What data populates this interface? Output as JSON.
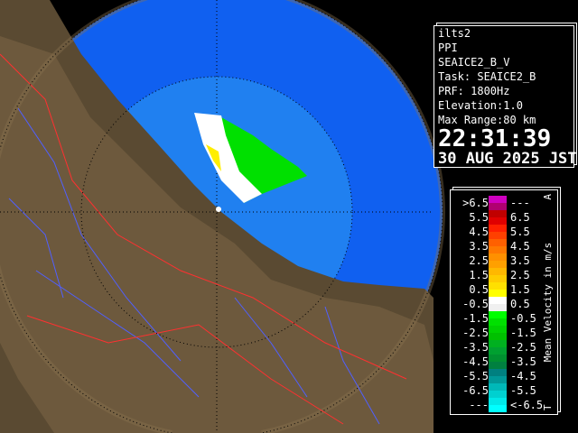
{
  "info": {
    "site": "ilts2",
    "mode": "PPI",
    "product": "SEAICE2_B_V",
    "task": "Task: SEAICE2_B",
    "prf": "PRF: 1800Hz",
    "elevation": "Elevation:1.0",
    "max_range": "Max Range:80 km",
    "time": "22:31:39",
    "date": "30 AUG 2025 JST"
  },
  "legend": {
    "title": "Mean Velocity in m/s",
    "top_marker": "A",
    "bottom_marker": "T",
    "rows": [
      {
        "lo": ">6.5",
        "hi": "---",
        "color": "#d000c0",
        "color2": "#b00070"
      },
      {
        "lo": "5.5",
        "hi": "6.5",
        "color": "#c00000",
        "color2": "#e00000"
      },
      {
        "lo": "4.5",
        "hi": "5.5",
        "color": "#ff2000",
        "color2": "#ff4000"
      },
      {
        "lo": "3.5",
        "hi": "4.5",
        "color": "#ff6000",
        "color2": "#ff7800"
      },
      {
        "lo": "2.5",
        "hi": "3.5",
        "color": "#ff9000",
        "color2": "#ffa000"
      },
      {
        "lo": "1.5",
        "hi": "2.5",
        "color": "#ffb800",
        "color2": "#ffcc00"
      },
      {
        "lo": "0.5",
        "hi": "1.5",
        "color": "#ffe000",
        "color2": "#ffff00"
      },
      {
        "lo": "-0.5",
        "hi": "0.5",
        "color": "#ffffff",
        "color2": "#f0f0f0"
      },
      {
        "lo": "-1.5",
        "hi": "-0.5",
        "color": "#00ff00",
        "color2": "#00e000"
      },
      {
        "lo": "-2.5",
        "hi": "-1.5",
        "color": "#00d000",
        "color2": "#00c000"
      },
      {
        "lo": "-3.5",
        "hi": "-2.5",
        "color": "#00b020",
        "color2": "#00a030"
      },
      {
        "lo": "-4.5",
        "hi": "-3.5",
        "color": "#009030",
        "color2": "#008040"
      },
      {
        "lo": "-5.5",
        "hi": "-4.5",
        "color": "#008080",
        "color2": "#009898"
      },
      {
        "lo": "-6.5",
        "hi": "-5.5",
        "color": "#00b8b8",
        "color2": "#00d0d0"
      },
      {
        "lo": "---",
        "hi": "<-6.5",
        "color": "#00e8e8",
        "color2": "#00ffff"
      }
    ]
  },
  "colors": {
    "sea_outer": "#1060f0",
    "sea_inner": "#2080f0",
    "land": "#5a4a32",
    "land_light": "#8a7450",
    "river": "#5060ff",
    "border": "#ff3030"
  }
}
